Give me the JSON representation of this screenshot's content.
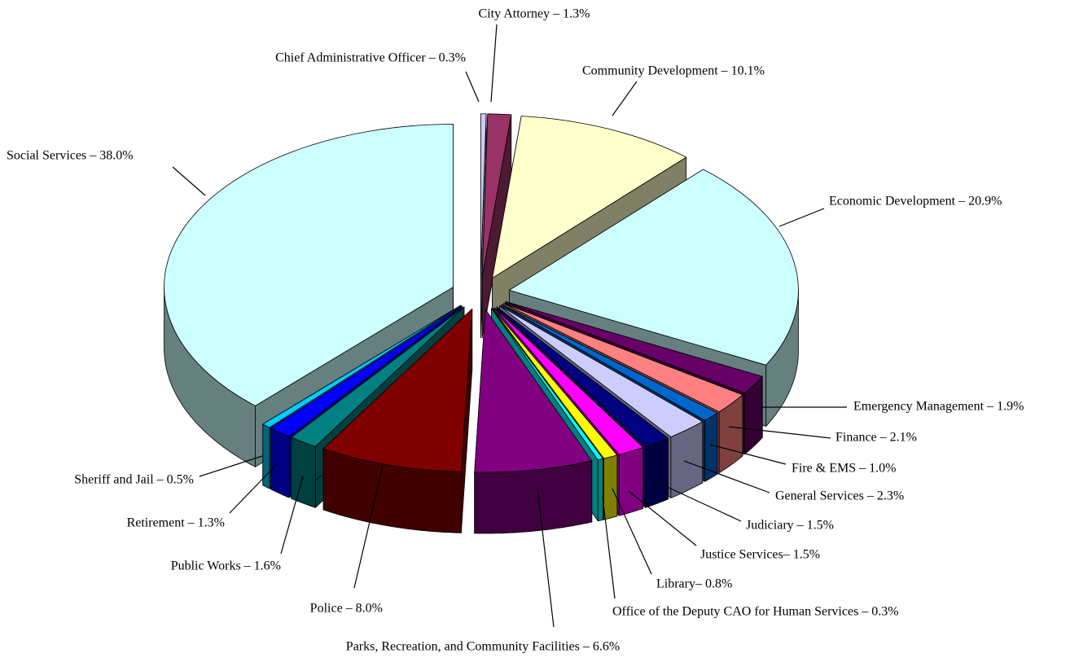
{
  "chart_data": {
    "type": "pie3d",
    "values": [
      0.3,
      1.3,
      10.1,
      20.9,
      1.9,
      2.1,
      1.0,
      2.3,
      1.5,
      1.5,
      0.8,
      0.3,
      6.6,
      8.0,
      1.6,
      1.3,
      0.5,
      38.0
    ],
    "value_labels": [
      "Chief Administrative Officer – 0.3%",
      "City Attorney – 1.3%",
      "Community Development – 10.1%",
      "Economic Development – 20.9%",
      "Emergency Management – 1.9%",
      "Finance – 2.1%",
      "Fire & EMS – 1.0%",
      "General Services – 2.3%",
      "Judiciary – 1.5%",
      "Justice Services– 1.5%",
      "Library– 0.8%",
      "Office of the Deputy CAO for Human Services – 0.3%",
      "Parks, Recreation, and Community Facilities – 6.6%",
      "Police – 8.0%",
      "Public Works – 1.6%",
      "Retirement – 1.3%",
      "Sheriff and Jail – 0.5%",
      "Social Services – 38.0%"
    ],
    "colors": [
      "#ccccff",
      "#993366",
      "#ffffcc",
      "#ccffff",
      "#660066",
      "#ff8080",
      "#0066cc",
      "#ccccff",
      "#000080",
      "#ff00ff",
      "#ffff00",
      "#00ffff",
      "#800080",
      "#800000",
      "#008080",
      "#0000ff",
      "#00ccff",
      "#ccffff"
    ]
  }
}
